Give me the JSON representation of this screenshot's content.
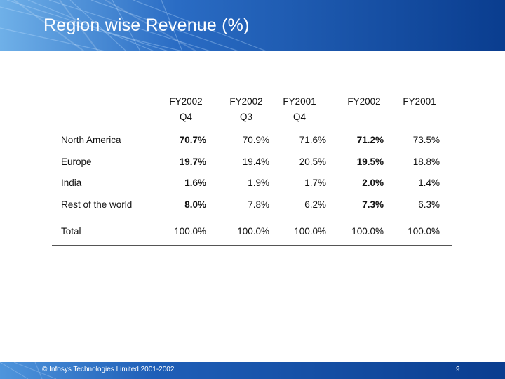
{
  "slide": {
    "title": "Region wise Revenue (%)",
    "page_number": "9",
    "footer": "© Infosys Technologies Limited 2001-2002"
  },
  "table": {
    "columns": [
      {
        "line1": "FY2002",
        "line2": "Q4"
      },
      {
        "line1": "FY2002",
        "line2": "Q3"
      },
      {
        "line1": "FY2001",
        "line2": "Q4"
      },
      {
        "line1": "FY2002",
        "line2": ""
      },
      {
        "line1": "FY2001",
        "line2": ""
      }
    ],
    "rows": [
      {
        "label": "North America",
        "values": [
          "70.7%",
          "70.9%",
          "71.6%",
          "71.2%",
          "73.5%"
        ]
      },
      {
        "label": "Europe",
        "values": [
          "19.7%",
          "19.4%",
          "20.5%",
          "19.5%",
          "18.8%"
        ]
      },
      {
        "label": "India",
        "values": [
          "1.6%",
          "1.9%",
          "1.7%",
          "2.0%",
          "1.4%"
        ]
      },
      {
        "label": "Rest of the world",
        "values": [
          "8.0%",
          "7.8%",
          "6.2%",
          "7.3%",
          "6.3%"
        ]
      },
      {
        "label": "Total",
        "values": [
          "100.0%",
          "100.0%",
          "100.0%",
          "100.0%",
          "100.0%"
        ]
      }
    ]
  },
  "colors": {
    "header_band": "#0a3d8f",
    "footer_band": "#0a3d8f",
    "rule": "#555555"
  }
}
